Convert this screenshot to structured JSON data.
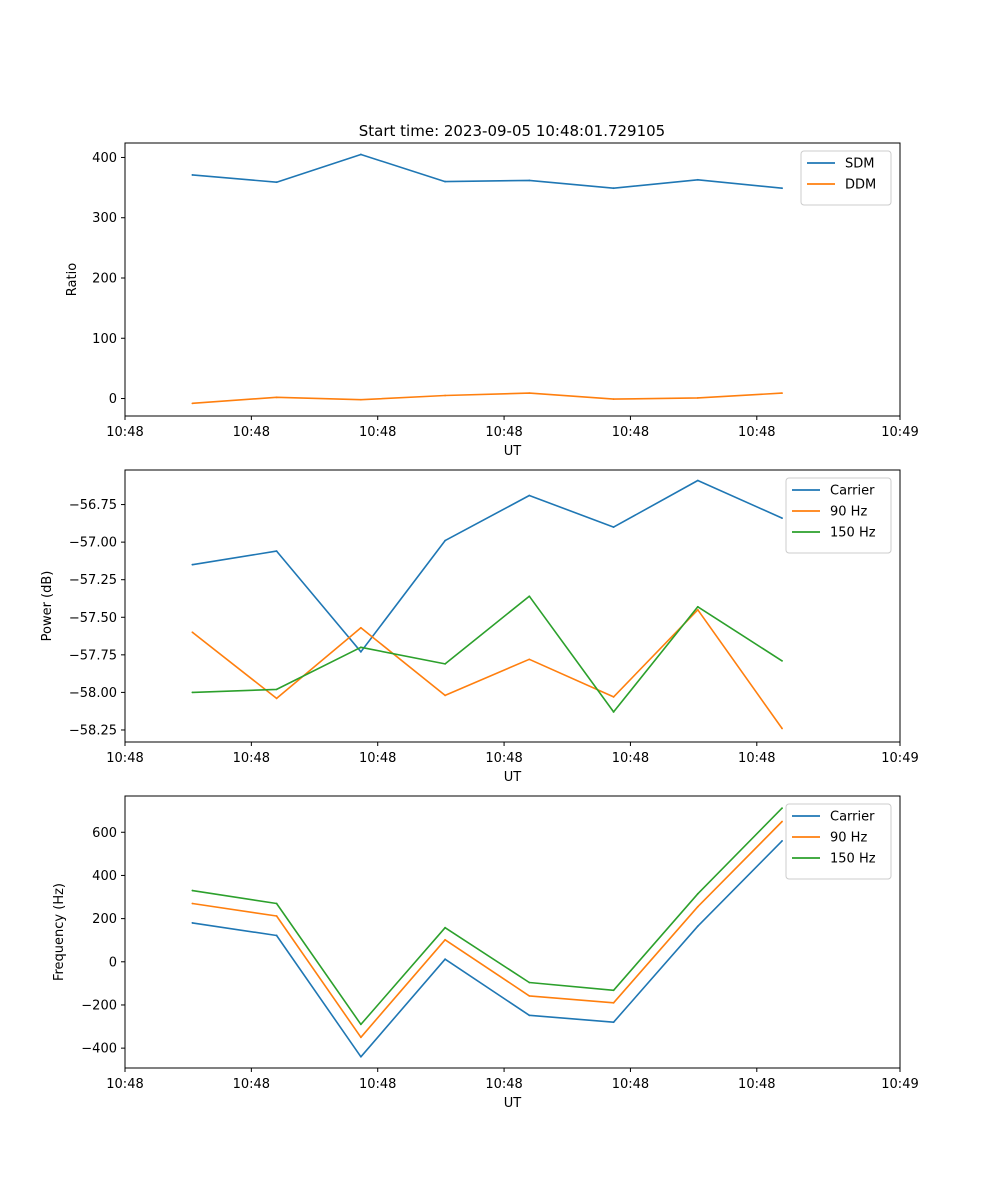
{
  "figure_title": "Start time: 2023-09-05 10:48:01.729105",
  "colors": {
    "blue": "#1f77b4",
    "orange": "#ff7f0e",
    "green": "#2ca02c"
  },
  "chart_data": [
    {
      "type": "line",
      "title": "Start time: 2023-09-05 10:48:01.729105",
      "xlabel": "UT",
      "ylabel": "Ratio",
      "x": [
        1,
        2,
        3,
        4,
        5,
        6,
        7,
        8
      ],
      "xlim": [
        0.2,
        9.4
      ],
      "xticks": [
        0.2,
        1.7,
        3.2,
        4.7,
        6.2,
        7.7,
        9.4
      ],
      "xtick_labels": [
        "10:48",
        "10:48",
        "10:48",
        "10:48",
        "10:48",
        "10:48",
        "10:49"
      ],
      "ylim": [
        -29,
        424
      ],
      "yticks": [
        0,
        100,
        200,
        300,
        400
      ],
      "ytick_labels": [
        "0",
        "100",
        "200",
        "300",
        "400"
      ],
      "legend_position": "top-right",
      "series": [
        {
          "name": "SDM",
          "color": "#1f77b4",
          "values": [
            371,
            359,
            405,
            360,
            362,
            349,
            363,
            349
          ]
        },
        {
          "name": "DDM",
          "color": "#ff7f0e",
          "values": [
            -8,
            2,
            -2,
            5,
            9,
            -1,
            1,
            9
          ]
        }
      ]
    },
    {
      "type": "line",
      "title": "",
      "xlabel": "UT",
      "ylabel": "Power (dB)",
      "x": [
        1,
        2,
        3,
        4,
        5,
        6,
        7,
        8
      ],
      "xlim": [
        0.2,
        9.4
      ],
      "xticks": [
        0.2,
        1.7,
        3.2,
        4.7,
        6.2,
        7.7,
        9.4
      ],
      "xtick_labels": [
        "10:48",
        "10:48",
        "10:48",
        "10:48",
        "10:48",
        "10:48",
        "10:49"
      ],
      "ylim": [
        -58.33,
        -56.52
      ],
      "yticks": [
        -56.75,
        -57.0,
        -57.25,
        -57.5,
        -57.75,
        -58.0,
        -58.25
      ],
      "ytick_labels": [
        "−56.75",
        "−57.00",
        "−57.25",
        "−57.50",
        "−57.75",
        "−58.00",
        "−58.25"
      ],
      "legend_position": "top-right",
      "series": [
        {
          "name": "Carrier",
          "color": "#1f77b4",
          "values": [
            -57.15,
            -57.06,
            -57.73,
            -56.99,
            -56.69,
            -56.9,
            -56.59,
            -56.84
          ]
        },
        {
          "name": "90 Hz",
          "color": "#ff7f0e",
          "values": [
            -57.6,
            -58.04,
            -57.57,
            -58.02,
            -57.78,
            -58.03,
            -57.45,
            -58.24
          ]
        },
        {
          "name": "150 Hz",
          "color": "#2ca02c",
          "values": [
            -58.0,
            -57.98,
            -57.7,
            -57.81,
            -57.36,
            -58.13,
            -57.43,
            -57.79
          ]
        }
      ]
    },
    {
      "type": "line",
      "title": "",
      "xlabel": "UT",
      "ylabel": "Frequency (Hz)",
      "x": [
        1,
        2,
        3,
        4,
        5,
        6,
        7,
        8
      ],
      "xlim": [
        0.2,
        9.4
      ],
      "xticks": [
        0.2,
        1.7,
        3.2,
        4.7,
        6.2,
        7.7,
        9.4
      ],
      "xtick_labels": [
        "10:48",
        "10:48",
        "10:48",
        "10:48",
        "10:48",
        "10:48",
        "10:49"
      ],
      "ylim": [
        -492,
        768
      ],
      "yticks": [
        600,
        400,
        200,
        0,
        -200,
        -400
      ],
      "ytick_labels": [
        "600",
        "400",
        "200",
        "0",
        "−200",
        "−400"
      ],
      "legend_position": "top-right",
      "series": [
        {
          "name": "Carrier",
          "color": "#1f77b4",
          "values": [
            180,
            122,
            -440,
            12,
            -248,
            -280,
            165,
            560
          ]
        },
        {
          "name": "90 Hz",
          "color": "#ff7f0e",
          "values": [
            270,
            212,
            -350,
            102,
            -158,
            -190,
            255,
            650
          ]
        },
        {
          "name": "150 Hz",
          "color": "#2ca02c",
          "values": [
            330,
            270,
            -290,
            158,
            -96,
            -132,
            315,
            712
          ]
        }
      ]
    }
  ]
}
